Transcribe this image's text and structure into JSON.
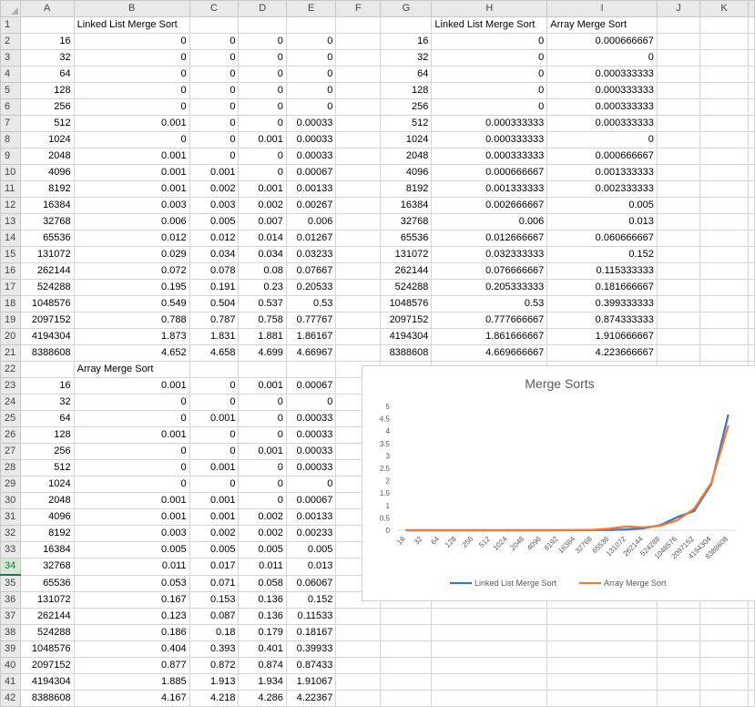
{
  "columns": [
    "A",
    "B",
    "C",
    "D",
    "E",
    "F",
    "G",
    "H",
    "I",
    "J",
    "K"
  ],
  "rows": [
    [
      "",
      "Linked List Merge Sort",
      "",
      "",
      "",
      "",
      "",
      "Linked List Merge Sort",
      "Array Merge Sort",
      "",
      ""
    ],
    [
      "16",
      "0",
      "0",
      "0",
      "0",
      "",
      "16",
      "0",
      "0.000666667",
      "",
      ""
    ],
    [
      "32",
      "0",
      "0",
      "0",
      "0",
      "",
      "32",
      "0",
      "0",
      "",
      ""
    ],
    [
      "64",
      "0",
      "0",
      "0",
      "0",
      "",
      "64",
      "0",
      "0.000333333",
      "",
      ""
    ],
    [
      "128",
      "0",
      "0",
      "0",
      "0",
      "",
      "128",
      "0",
      "0.000333333",
      "",
      ""
    ],
    [
      "256",
      "0",
      "0",
      "0",
      "0",
      "",
      "256",
      "0",
      "0.000333333",
      "",
      ""
    ],
    [
      "512",
      "0.001",
      "0",
      "0",
      "0.00033",
      "",
      "512",
      "0.000333333",
      "0.000333333",
      "",
      ""
    ],
    [
      "1024",
      "0",
      "0",
      "0.001",
      "0.00033",
      "",
      "1024",
      "0.000333333",
      "0",
      "",
      ""
    ],
    [
      "2048",
      "0.001",
      "0",
      "0",
      "0.00033",
      "",
      "2048",
      "0.000333333",
      "0.000666667",
      "",
      ""
    ],
    [
      "4096",
      "0.001",
      "0.001",
      "0",
      "0.00067",
      "",
      "4096",
      "0.000666667",
      "0.001333333",
      "",
      ""
    ],
    [
      "8192",
      "0.001",
      "0.002",
      "0.001",
      "0.00133",
      "",
      "8192",
      "0.001333333",
      "0.002333333",
      "",
      ""
    ],
    [
      "16384",
      "0.003",
      "0.003",
      "0.002",
      "0.00267",
      "",
      "16384",
      "0.002666667",
      "0.005",
      "",
      ""
    ],
    [
      "32768",
      "0.006",
      "0.005",
      "0.007",
      "0.006",
      "",
      "32768",
      "0.006",
      "0.013",
      "",
      ""
    ],
    [
      "65536",
      "0.012",
      "0.012",
      "0.014",
      "0.01267",
      "",
      "65536",
      "0.012666667",
      "0.060666667",
      "",
      ""
    ],
    [
      "131072",
      "0.029",
      "0.034",
      "0.034",
      "0.03233",
      "",
      "131072",
      "0.032333333",
      "0.152",
      "",
      ""
    ],
    [
      "262144",
      "0.072",
      "0.078",
      "0.08",
      "0.07667",
      "",
      "262144",
      "0.076666667",
      "0.115333333",
      "",
      ""
    ],
    [
      "524288",
      "0.195",
      "0.191",
      "0.23",
      "0.20533",
      "",
      "524288",
      "0.205333333",
      "0.181666667",
      "",
      ""
    ],
    [
      "1048576",
      "0.549",
      "0.504",
      "0.537",
      "0.53",
      "",
      "1048576",
      "0.53",
      "0.399333333",
      "",
      ""
    ],
    [
      "2097152",
      "0.788",
      "0.787",
      "0.758",
      "0.77767",
      "",
      "2097152",
      "0.777666667",
      "0.874333333",
      "",
      ""
    ],
    [
      "4194304",
      "1.873",
      "1.831",
      "1.881",
      "1.86167",
      "",
      "4194304",
      "1.861666667",
      "1.910666667",
      "",
      ""
    ],
    [
      "8388608",
      "4.652",
      "4.658",
      "4.699",
      "4.66967",
      "",
      "8388608",
      "4.669666667",
      "4.223666667",
      "",
      ""
    ],
    [
      "",
      "Array Merge Sort",
      "",
      "",
      "",
      "",
      "",
      "",
      "",
      "",
      ""
    ],
    [
      "16",
      "0.001",
      "0",
      "0.001",
      "0.00067",
      "",
      "",
      "",
      "",
      "",
      ""
    ],
    [
      "32",
      "0",
      "0",
      "0",
      "0",
      "",
      "",
      "",
      "",
      "",
      ""
    ],
    [
      "64",
      "0",
      "0.001",
      "0",
      "0.00033",
      "",
      "",
      "",
      "",
      "",
      ""
    ],
    [
      "128",
      "0.001",
      "0",
      "0",
      "0.00033",
      "",
      "",
      "",
      "",
      "",
      ""
    ],
    [
      "256",
      "0",
      "0",
      "0.001",
      "0.00033",
      "",
      "",
      "",
      "",
      "",
      ""
    ],
    [
      "512",
      "0",
      "0.001",
      "0",
      "0.00033",
      "",
      "",
      "",
      "",
      "",
      ""
    ],
    [
      "1024",
      "0",
      "0",
      "0",
      "0",
      "",
      "",
      "",
      "",
      "",
      ""
    ],
    [
      "2048",
      "0.001",
      "0.001",
      "0",
      "0.00067",
      "",
      "",
      "",
      "",
      "",
      ""
    ],
    [
      "4096",
      "0.001",
      "0.001",
      "0.002",
      "0.00133",
      "",
      "",
      "",
      "",
      "",
      ""
    ],
    [
      "8192",
      "0.003",
      "0.002",
      "0.002",
      "0.00233",
      "",
      "",
      "",
      "",
      "",
      ""
    ],
    [
      "16384",
      "0.005",
      "0.005",
      "0.005",
      "0.005",
      "",
      "",
      "",
      "",
      "",
      ""
    ],
    [
      "32768",
      "0.011",
      "0.017",
      "0.011",
      "0.013",
      "",
      "",
      "",
      "",
      "",
      ""
    ],
    [
      "65536",
      "0.053",
      "0.071",
      "0.058",
      "0.06067",
      "",
      "",
      "",
      "",
      "",
      ""
    ],
    [
      "131072",
      "0.167",
      "0.153",
      "0.136",
      "0.152",
      "",
      "",
      "",
      "",
      "",
      ""
    ],
    [
      "262144",
      "0.123",
      "0.087",
      "0.136",
      "0.11533",
      "",
      "",
      "",
      "",
      "",
      ""
    ],
    [
      "524288",
      "0.186",
      "0.18",
      "0.179",
      "0.18167",
      "",
      "",
      "",
      "",
      "",
      ""
    ],
    [
      "1048576",
      "0.404",
      "0.393",
      "0.401",
      "0.39933",
      "",
      "",
      "",
      "",
      "",
      ""
    ],
    [
      "2097152",
      "0.877",
      "0.872",
      "0.874",
      "0.87433",
      "",
      "",
      "",
      "",
      "",
      ""
    ],
    [
      "4194304",
      "1.885",
      "1.913",
      "1.934",
      "1.91067",
      "",
      "",
      "",
      "",
      "",
      ""
    ],
    [
      "8388608",
      "4.167",
      "4.218",
      "4.286",
      "4.22367",
      "",
      "",
      "",
      "",
      "",
      ""
    ]
  ],
  "selected_row": 34,
  "chart_data": {
    "type": "line",
    "title": "Merge Sorts",
    "categories": [
      "16",
      "32",
      "64",
      "128",
      "256",
      "512",
      "1024",
      "2048",
      "4096",
      "8192",
      "16384",
      "32768",
      "65536",
      "131072",
      "262144",
      "524288",
      "1048576",
      "2097152",
      "4194304",
      "8388608"
    ],
    "ylim": [
      0,
      5
    ],
    "yticks": [
      "0",
      "0.5",
      "1",
      "1.5",
      "2",
      "2.5",
      "3",
      "3.5",
      "4",
      "4.5",
      "5"
    ],
    "grid": false,
    "legend_position": "bottom",
    "series": [
      {
        "name": "Linked List Merge Sort",
        "color": "#4472c4",
        "values": [
          0,
          0,
          0,
          0,
          0,
          0.000333333,
          0.000333333,
          0.000333333,
          0.000666667,
          0.001333333,
          0.002666667,
          0.006,
          0.012666667,
          0.032333333,
          0.076666667,
          0.205333333,
          0.53,
          0.777666667,
          1.861666667,
          4.669666667
        ]
      },
      {
        "name": "Array Merge Sort",
        "color": "#ed7d31",
        "values": [
          0.000666667,
          0,
          0.000333333,
          0.000333333,
          0.000333333,
          0.000333333,
          0,
          0.000666667,
          0.001333333,
          0.002333333,
          0.005,
          0.013,
          0.060666667,
          0.152,
          0.115333333,
          0.181666667,
          0.399333333,
          0.874333333,
          1.910666667,
          4.223666667
        ]
      }
    ]
  }
}
